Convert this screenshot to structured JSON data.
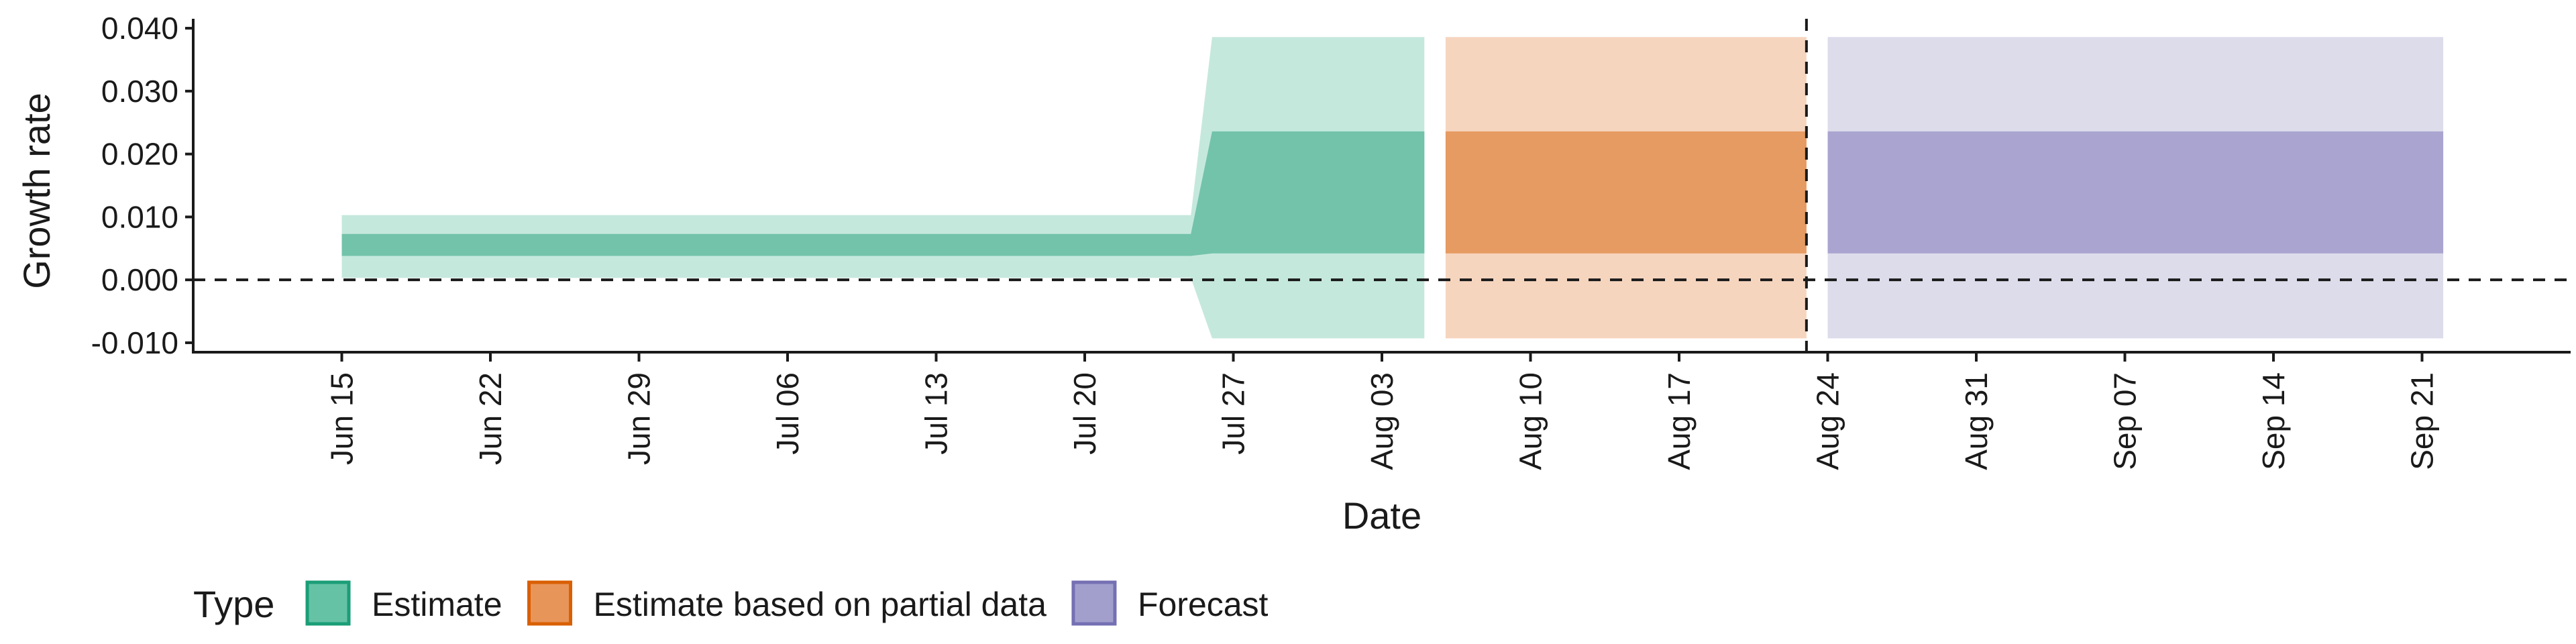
{
  "chart_data": {
    "type": "area",
    "xlabel": "Date",
    "ylabel": "Growth rate",
    "ylim": [
      -0.0115,
      0.0415
    ],
    "xlim": [
      "2020-06-08",
      "2020-09-28"
    ],
    "y_ticks": [
      {
        "value": -0.01,
        "label": "-0.010"
      },
      {
        "value": 0.0,
        "label": "0.000"
      },
      {
        "value": 0.01,
        "label": "0.010"
      },
      {
        "value": 0.02,
        "label": "0.020"
      },
      {
        "value": 0.03,
        "label": "0.030"
      },
      {
        "value": 0.04,
        "label": "0.040"
      }
    ],
    "x_ticks": [
      {
        "date": "2020-06-15",
        "label": "Jun 15"
      },
      {
        "date": "2020-06-22",
        "label": "Jun 22"
      },
      {
        "date": "2020-06-29",
        "label": "Jun 29"
      },
      {
        "date": "2020-07-06",
        "label": "Jul 06"
      },
      {
        "date": "2020-07-13",
        "label": "Jul 13"
      },
      {
        "date": "2020-07-20",
        "label": "Jul 20"
      },
      {
        "date": "2020-07-27",
        "label": "Jul 27"
      },
      {
        "date": "2020-08-03",
        "label": "Aug 03"
      },
      {
        "date": "2020-08-10",
        "label": "Aug 10"
      },
      {
        "date": "2020-08-17",
        "label": "Aug 17"
      },
      {
        "date": "2020-08-24",
        "label": "Aug 24"
      },
      {
        "date": "2020-08-31",
        "label": "Aug 31"
      },
      {
        "date": "2020-09-07",
        "label": "Sep 07"
      },
      {
        "date": "2020-09-14",
        "label": "Sep 14"
      },
      {
        "date": "2020-09-21",
        "label": "Sep 21"
      }
    ],
    "legend": {
      "title": "Type",
      "position": "bottom-left",
      "entries": [
        {
          "name": "Estimate",
          "fill": "#66C2A5",
          "stroke": "#1B9E77"
        },
        {
          "name": "Estimate based on partial data",
          "fill": "#E8955A",
          "stroke": "#D95F02"
        },
        {
          "name": "Forecast",
          "fill": "#A39FCD",
          "stroke": "#7570B3"
        }
      ]
    },
    "series": [
      {
        "type": "Estimate",
        "outer_color": "#C5E8DD",
        "inner_color": "#72C3A9",
        "points": [
          {
            "x": "2020-06-15",
            "lower90": 0.0003,
            "lower50": 0.0038,
            "upper50": 0.0073,
            "upper90": 0.0103
          },
          {
            "x": "2020-07-25",
            "lower90": 0.0003,
            "lower50": 0.0038,
            "upper50": 0.0073,
            "upper90": 0.0103
          },
          {
            "x": "2020-07-26",
            "lower90": -0.0093,
            "lower50": 0.0042,
            "upper50": 0.0236,
            "upper90": 0.0386
          },
          {
            "x": "2020-08-05",
            "lower90": -0.0093,
            "lower50": 0.0042,
            "upper50": 0.0236,
            "upper90": 0.0386
          }
        ]
      },
      {
        "type": "Estimate based on partial data",
        "outer_color": "#F6D5BF",
        "inner_color": "#E69B62",
        "points": [
          {
            "x": "2020-08-06",
            "lower90": -0.0093,
            "lower50": 0.0042,
            "upper50": 0.0236,
            "upper90": 0.0386
          },
          {
            "x": "2020-08-23",
            "lower90": -0.0093,
            "lower50": 0.0042,
            "upper50": 0.0236,
            "upper90": 0.0386
          }
        ]
      },
      {
        "type": "Forecast",
        "outer_color": "#DDDCEB",
        "inner_color": "#A9A5D0",
        "points": [
          {
            "x": "2020-08-24",
            "lower90": -0.0093,
            "lower50": 0.0042,
            "upper50": 0.0236,
            "upper90": 0.0386
          },
          {
            "x": "2020-09-22",
            "lower90": -0.0093,
            "lower50": 0.0042,
            "upper50": 0.0236,
            "upper90": 0.0386
          }
        ]
      }
    ],
    "reference_lines": [
      {
        "orientation": "horizontal",
        "value": 0.0,
        "style": "dashed"
      },
      {
        "orientation": "vertical",
        "value": "2020-08-23",
        "style": "dashed"
      }
    ],
    "grid": false
  }
}
